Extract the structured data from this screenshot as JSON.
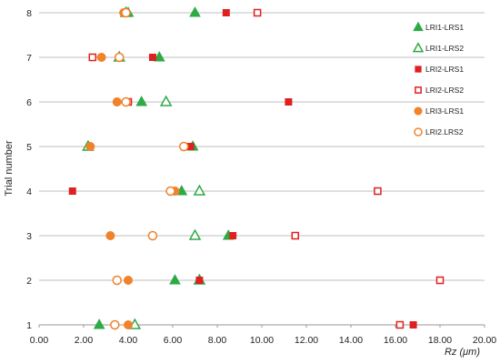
{
  "chart_data": {
    "type": "scatter",
    "xlabel": "Rz (μm)",
    "ylabel": "Trial number",
    "xlim": [
      0,
      20
    ],
    "ylim": [
      1,
      8
    ],
    "x_ticks": [
      "0.00",
      "2.00",
      "4.00",
      "6.00",
      "8.00",
      "10.00",
      "12.00",
      "14.00",
      "16.00",
      "18.00",
      "20.00"
    ],
    "y_ticks": [
      "1",
      "2",
      "3",
      "4",
      "5",
      "6",
      "7",
      "8"
    ],
    "grid": "horizontal",
    "legend_position": "right",
    "series": [
      {
        "name": "LRI1-LRS1",
        "marker": "triangle",
        "filled": true,
        "color": "#2eaa45",
        "points": [
          [
            2.7,
            1
          ],
          [
            6.1,
            2
          ],
          [
            7.2,
            2
          ],
          [
            8.5,
            3
          ],
          [
            6.4,
            4
          ],
          [
            6.9,
            5
          ],
          [
            4.6,
            6
          ],
          [
            5.4,
            7
          ],
          [
            7.0,
            8
          ],
          [
            4.0,
            8
          ]
        ]
      },
      {
        "name": "LRI1-LRS2",
        "marker": "triangle",
        "filled": false,
        "color": "#2eaa45",
        "points": [
          [
            4.3,
            1
          ],
          [
            7.2,
            2
          ],
          [
            7.0,
            3
          ],
          [
            7.2,
            4
          ],
          [
            2.2,
            5
          ],
          [
            5.7,
            6
          ],
          [
            3.6,
            7
          ],
          [
            3.9,
            8
          ]
        ]
      },
      {
        "name": "LRI2-LRS1",
        "marker": "square",
        "filled": true,
        "color": "#e02020",
        "points": [
          [
            16.8,
            1
          ],
          [
            7.2,
            2
          ],
          [
            8.7,
            3
          ],
          [
            1.5,
            4
          ],
          [
            6.8,
            5
          ],
          [
            11.2,
            6
          ],
          [
            5.1,
            7
          ],
          [
            8.4,
            8
          ]
        ]
      },
      {
        "name": "LRI2-LRS2",
        "marker": "square",
        "filled": false,
        "color": "#e02020",
        "points": [
          [
            16.2,
            1
          ],
          [
            18.0,
            2
          ],
          [
            11.5,
            3
          ],
          [
            15.2,
            4
          ],
          [
            4.0,
            6
          ],
          [
            2.4,
            7
          ],
          [
            9.8,
            8
          ]
        ]
      },
      {
        "name": "LRI3-LRS1",
        "marker": "circle",
        "filled": true,
        "color": "#f0822a",
        "points": [
          [
            4.0,
            1
          ],
          [
            4.0,
            2
          ],
          [
            3.2,
            3
          ],
          [
            6.1,
            4
          ],
          [
            2.3,
            5
          ],
          [
            3.5,
            6
          ],
          [
            2.8,
            7
          ],
          [
            3.6,
            7
          ],
          [
            3.8,
            8
          ]
        ]
      },
      {
        "name": "LRI2.LRS2",
        "marker": "circle",
        "filled": false,
        "color": "#f0822a",
        "points": [
          [
            3.4,
            1
          ],
          [
            3.5,
            2
          ],
          [
            5.1,
            3
          ],
          [
            5.9,
            4
          ],
          [
            6.5,
            5
          ],
          [
            3.9,
            6
          ],
          [
            3.6,
            7
          ],
          [
            3.9,
            8
          ]
        ]
      }
    ]
  }
}
